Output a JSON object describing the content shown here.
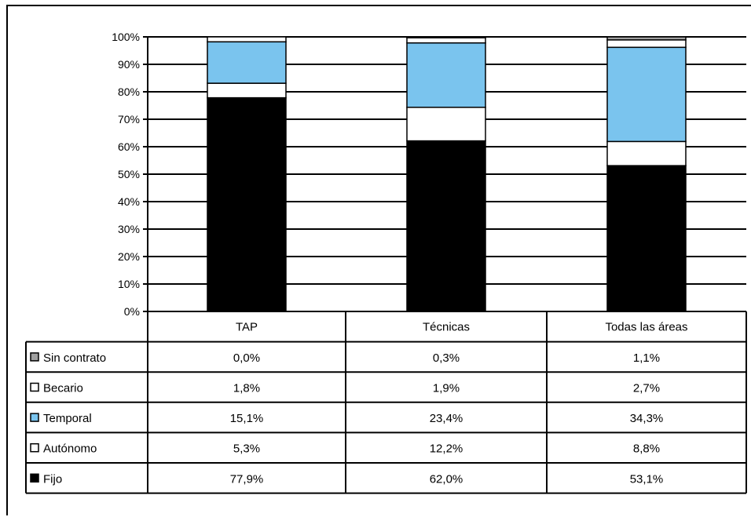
{
  "chart_data": {
    "type": "bar",
    "stacked": true,
    "normalized": true,
    "categories": [
      "TAP",
      "Técnicas",
      "Todas las áreas"
    ],
    "ylim": [
      0,
      100
    ],
    "yticks": [
      "0%",
      "10%",
      "20%",
      "30%",
      "40%",
      "50%",
      "60%",
      "70%",
      "80%",
      "90%",
      "100%"
    ],
    "grid": true,
    "series": [
      {
        "name": "Sin contrato",
        "color": "#a0a0a0",
        "values": [
          0.0,
          0.3,
          1.1
        ],
        "labels": [
          "0,0%",
          "0,3%",
          "1,1%"
        ]
      },
      {
        "name": "Becario",
        "color": "#ffffff",
        "values": [
          1.8,
          1.9,
          2.7
        ],
        "labels": [
          "1,8%",
          "1,9%",
          "2,7%"
        ]
      },
      {
        "name": "Temporal",
        "color": "#7ac4ee",
        "values": [
          15.1,
          23.4,
          34.3
        ],
        "labels": [
          "15,1%",
          "23,4%",
          "34,3%"
        ]
      },
      {
        "name": "Autónomo",
        "color": "#ffffff",
        "values": [
          5.3,
          12.2,
          8.8
        ],
        "labels": [
          "5,3%",
          "12,2%",
          "8,8%"
        ]
      },
      {
        "name": "Fijo",
        "color": "#000000",
        "values": [
          77.9,
          62.0,
          53.1
        ],
        "labels": [
          "77,9%",
          "62,0%",
          "53,1%"
        ]
      }
    ]
  }
}
